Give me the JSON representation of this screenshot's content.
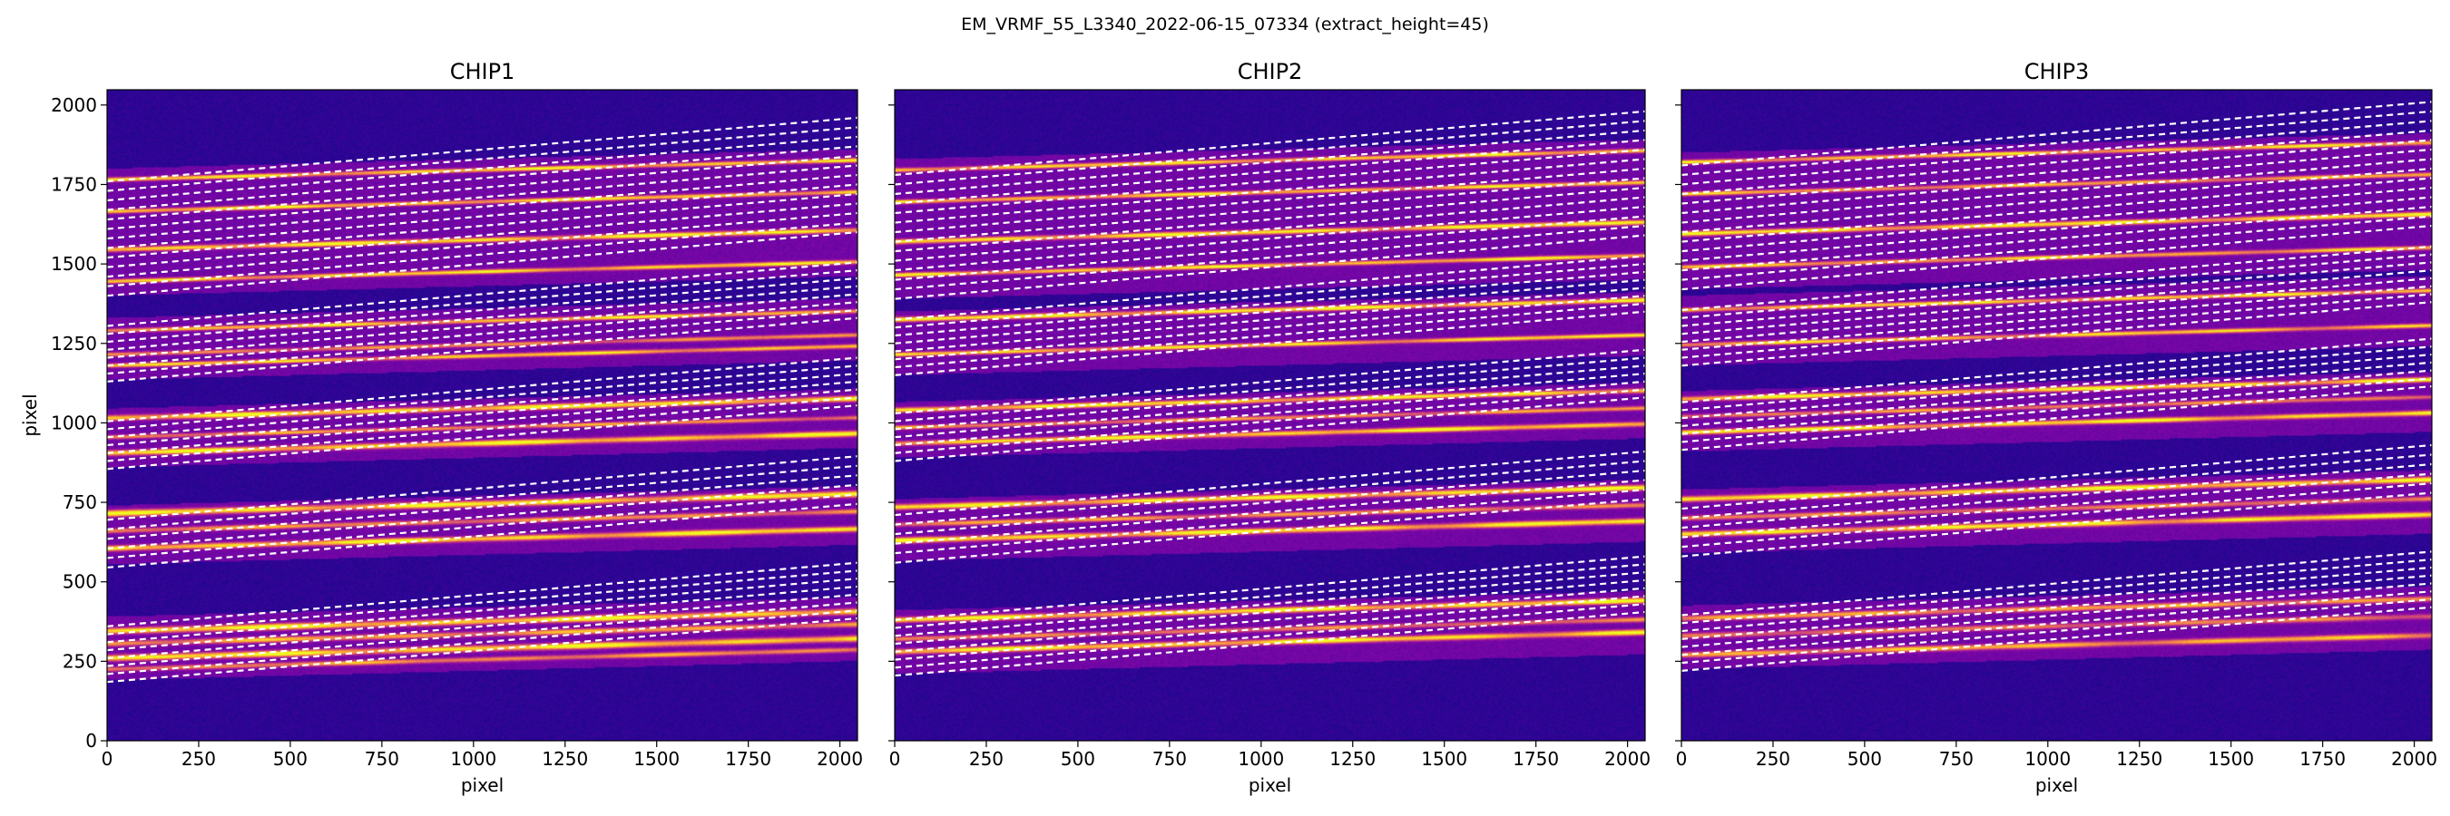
{
  "figure": {
    "suptitle": "EM_VRMF_55_L3340_2022-06-15_07334  (extract_height=45)"
  },
  "chart_data": [
    {
      "type": "heatmap",
      "title": "CHIP1",
      "xlabel": "pixel",
      "ylabel": "pixel",
      "xlim": [
        0,
        2048
      ],
      "ylim": [
        0,
        2048
      ],
      "xticks": [
        0,
        250,
        500,
        750,
        1000,
        1250,
        1500,
        1750,
        2000
      ],
      "yticks": [
        0,
        250,
        500,
        750,
        1000,
        1250,
        1500,
        1750,
        2000
      ],
      "colormap": "plasma",
      "order_bands": [
        [
          190,
          390
        ],
        [
          555,
          740
        ],
        [
          860,
          1045
        ],
        [
          1135,
          1330
        ],
        [
          1400,
          1800
        ]
      ],
      "trace_peaks": [
        {
          "y": 225,
          "amp": 0.7,
          "width": 7
        },
        {
          "y": 260,
          "amp": 1.0,
          "width": 9
        },
        {
          "y": 305,
          "amp": 0.75,
          "width": 8
        },
        {
          "y": 345,
          "amp": 1.0,
          "width": 9
        },
        {
          "y": 605,
          "amp": 1.0,
          "width": 8
        },
        {
          "y": 660,
          "amp": 0.7,
          "width": 7
        },
        {
          "y": 715,
          "amp": 1.0,
          "width": 9
        },
        {
          "y": 905,
          "amp": 1.0,
          "width": 8
        },
        {
          "y": 955,
          "amp": 0.7,
          "width": 6
        },
        {
          "y": 1015,
          "amp": 1.0,
          "width": 8
        },
        {
          "y": 1180,
          "amp": 0.9,
          "width": 6
        },
        {
          "y": 1215,
          "amp": 0.65,
          "width": 6
        },
        {
          "y": 1290,
          "amp": 0.9,
          "width": 6
        },
        {
          "y": 1445,
          "amp": 0.95,
          "width": 6
        },
        {
          "y": 1545,
          "amp": 1.0,
          "width": 7
        },
        {
          "y": 1665,
          "amp": 0.95,
          "width": 6
        },
        {
          "y": 1765,
          "amp": 0.95,
          "width": 6
        }
      ],
      "trace_lines": [
        [
          185,
          385
        ],
        [
          210,
          410
        ],
        [
          235,
          435
        ],
        [
          260,
          460
        ],
        [
          285,
          485
        ],
        [
          310,
          510
        ],
        [
          335,
          535
        ],
        [
          360,
          560
        ],
        [
          545,
          745
        ],
        [
          575,
          775
        ],
        [
          605,
          805
        ],
        [
          635,
          835
        ],
        [
          665,
          865
        ],
        [
          695,
          895
        ],
        [
          855,
          1055
        ],
        [
          880,
          1080
        ],
        [
          905,
          1105
        ],
        [
          930,
          1130
        ],
        [
          955,
          1155
        ],
        [
          980,
          1180
        ],
        [
          1005,
          1205
        ],
        [
          1130,
          1330
        ],
        [
          1155,
          1355
        ],
        [
          1180,
          1380
        ],
        [
          1205,
          1405
        ],
        [
          1230,
          1430
        ],
        [
          1255,
          1455
        ],
        [
          1280,
          1480
        ],
        [
          1305,
          1505
        ],
        [
          1400,
          1600
        ],
        [
          1430,
          1630
        ],
        [
          1460,
          1660
        ],
        [
          1490,
          1690
        ],
        [
          1520,
          1720
        ],
        [
          1550,
          1750
        ],
        [
          1580,
          1780
        ],
        [
          1610,
          1810
        ],
        [
          1640,
          1840
        ],
        [
          1670,
          1870
        ],
        [
          1700,
          1900
        ],
        [
          1730,
          1930
        ],
        [
          1760,
          1960
        ]
      ]
    },
    {
      "type": "heatmap",
      "title": "CHIP2",
      "xlabel": "pixel",
      "ylabel": "",
      "xlim": [
        0,
        2048
      ],
      "ylim": [
        0,
        2048
      ],
      "xticks": [
        0,
        250,
        500,
        750,
        1000,
        1250,
        1500,
        1750,
        2000
      ],
      "yticks": [
        0,
        250,
        500,
        750,
        1000,
        1250,
        1500,
        1750,
        2000
      ],
      "colormap": "plasma",
      "order_bands": [
        [
          210,
          410
        ],
        [
          565,
          760
        ],
        [
          890,
          1065
        ],
        [
          1150,
          1350
        ],
        [
          1390,
          1830
        ]
      ],
      "trace_peaks": [
        {
          "y": 280,
          "amp": 1.0,
          "width": 8
        },
        {
          "y": 320,
          "amp": 0.6,
          "width": 7
        },
        {
          "y": 380,
          "amp": 1.0,
          "width": 8
        },
        {
          "y": 630,
          "amp": 1.0,
          "width": 8
        },
        {
          "y": 680,
          "amp": 0.7,
          "width": 7
        },
        {
          "y": 735,
          "amp": 1.0,
          "width": 8
        },
        {
          "y": 935,
          "amp": 1.0,
          "width": 7
        },
        {
          "y": 985,
          "amp": 0.7,
          "width": 6
        },
        {
          "y": 1040,
          "amp": 1.0,
          "width": 7
        },
        {
          "y": 1215,
          "amp": 0.95,
          "width": 6
        },
        {
          "y": 1325,
          "amp": 1.0,
          "width": 7
        },
        {
          "y": 1465,
          "amp": 0.95,
          "width": 6
        },
        {
          "y": 1570,
          "amp": 1.0,
          "width": 7
        },
        {
          "y": 1695,
          "amp": 0.9,
          "width": 6
        },
        {
          "y": 1795,
          "amp": 0.95,
          "width": 6
        }
      ],
      "trace_lines": [
        [
          205,
          405
        ],
        [
          230,
          430
        ],
        [
          255,
          455
        ],
        [
          280,
          480
        ],
        [
          305,
          505
        ],
        [
          330,
          530
        ],
        [
          355,
          555
        ],
        [
          380,
          580
        ],
        [
          560,
          760
        ],
        [
          590,
          790
        ],
        [
          620,
          820
        ],
        [
          650,
          850
        ],
        [
          680,
          880
        ],
        [
          710,
          910
        ],
        [
          880,
          1080
        ],
        [
          905,
          1105
        ],
        [
          930,
          1130
        ],
        [
          955,
          1155
        ],
        [
          980,
          1180
        ],
        [
          1005,
          1205
        ],
        [
          1030,
          1230
        ],
        [
          1150,
          1350
        ],
        [
          1175,
          1375
        ],
        [
          1200,
          1400
        ],
        [
          1225,
          1425
        ],
        [
          1250,
          1450
        ],
        [
          1275,
          1475
        ],
        [
          1300,
          1500
        ],
        [
          1325,
          1525
        ],
        [
          1390,
          1590
        ],
        [
          1420,
          1620
        ],
        [
          1450,
          1650
        ],
        [
          1480,
          1680
        ],
        [
          1510,
          1710
        ],
        [
          1540,
          1740
        ],
        [
          1570,
          1770
        ],
        [
          1600,
          1800
        ],
        [
          1630,
          1830
        ],
        [
          1660,
          1860
        ],
        [
          1690,
          1890
        ],
        [
          1720,
          1920
        ],
        [
          1750,
          1950
        ],
        [
          1780,
          1980
        ]
      ]
    },
    {
      "type": "heatmap",
      "title": "CHIP3",
      "xlabel": "pixel",
      "ylabel": "",
      "xlim": [
        0,
        2048
      ],
      "ylim": [
        0,
        2048
      ],
      "xticks": [
        0,
        250,
        500,
        750,
        1000,
        1250,
        1500,
        1750,
        2000
      ],
      "yticks": [
        0,
        250,
        500,
        750,
        1000,
        1250,
        1500,
        1750,
        2000
      ],
      "colormap": "plasma",
      "order_bands": [
        [
          225,
          425
        ],
        [
          590,
          790
        ],
        [
          910,
          1100
        ],
        [
          1180,
          1400
        ],
        [
          1420,
          1850
        ]
      ],
      "trace_peaks": [
        {
          "y": 270,
          "amp": 0.8,
          "width": 8
        },
        {
          "y": 330,
          "amp": 0.6,
          "width": 8
        },
        {
          "y": 385,
          "amp": 0.75,
          "width": 8
        },
        {
          "y": 650,
          "amp": 1.0,
          "width": 8
        },
        {
          "y": 700,
          "amp": 0.65,
          "width": 7
        },
        {
          "y": 760,
          "amp": 1.0,
          "width": 8
        },
        {
          "y": 970,
          "amp": 1.0,
          "width": 7
        },
        {
          "y": 1020,
          "amp": 0.65,
          "width": 6
        },
        {
          "y": 1075,
          "amp": 1.0,
          "width": 7
        },
        {
          "y": 1245,
          "amp": 0.9,
          "width": 6
        },
        {
          "y": 1355,
          "amp": 0.95,
          "width": 6
        },
        {
          "y": 1490,
          "amp": 0.85,
          "width": 6
        },
        {
          "y": 1595,
          "amp": 1.0,
          "width": 7
        },
        {
          "y": 1720,
          "amp": 0.8,
          "width": 6
        },
        {
          "y": 1820,
          "amp": 0.9,
          "width": 6
        }
      ],
      "trace_lines": [
        [
          220,
          420
        ],
        [
          245,
          445
        ],
        [
          270,
          470
        ],
        [
          295,
          495
        ],
        [
          320,
          520
        ],
        [
          345,
          545
        ],
        [
          370,
          570
        ],
        [
          395,
          595
        ],
        [
          580,
          780
        ],
        [
          610,
          810
        ],
        [
          640,
          840
        ],
        [
          670,
          870
        ],
        [
          700,
          900
        ],
        [
          730,
          930
        ],
        [
          915,
          1115
        ],
        [
          940,
          1140
        ],
        [
          965,
          1165
        ],
        [
          990,
          1190
        ],
        [
          1015,
          1215
        ],
        [
          1040,
          1240
        ],
        [
          1065,
          1265
        ],
        [
          1180,
          1380
        ],
        [
          1205,
          1405
        ],
        [
          1230,
          1430
        ],
        [
          1255,
          1455
        ],
        [
          1280,
          1480
        ],
        [
          1305,
          1505
        ],
        [
          1330,
          1530
        ],
        [
          1355,
          1555
        ],
        [
          1420,
          1620
        ],
        [
          1450,
          1650
        ],
        [
          1480,
          1680
        ],
        [
          1510,
          1710
        ],
        [
          1540,
          1740
        ],
        [
          1570,
          1770
        ],
        [
          1600,
          1800
        ],
        [
          1630,
          1830
        ],
        [
          1660,
          1860
        ],
        [
          1690,
          1890
        ],
        [
          1720,
          1920
        ],
        [
          1750,
          1950
        ],
        [
          1780,
          1980
        ],
        [
          1810,
          2010
        ]
      ]
    }
  ]
}
